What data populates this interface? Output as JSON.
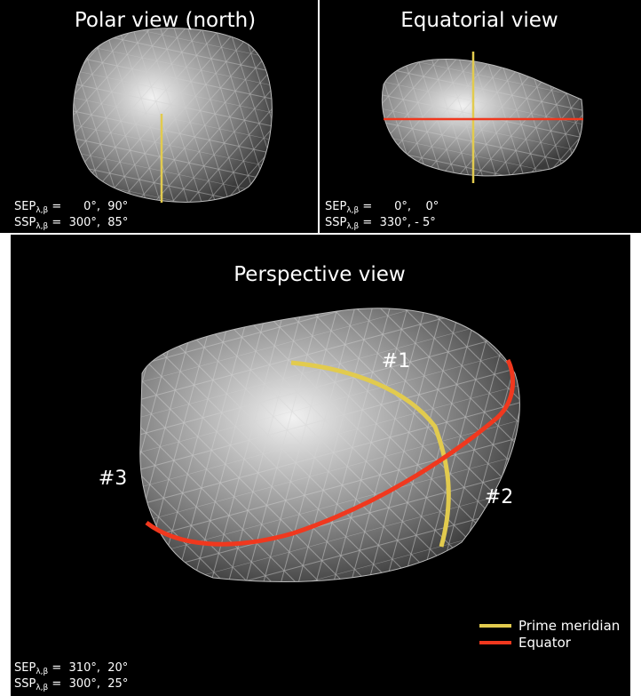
{
  "panels": [
    {
      "title": "Polar view (north)",
      "sep": {
        "label": "SEP",
        "sub": "λ,β",
        "value": " =      0°,  90°"
      },
      "ssp": {
        "label": "SSP",
        "sub": "λ,β",
        "value": " =  300°,  85°"
      }
    },
    {
      "title": "Equatorial view",
      "sep": {
        "label": "SEP",
        "sub": "λ,β",
        "value": " =      0°,    0°"
      },
      "ssp": {
        "label": "SSP",
        "sub": "λ,β",
        "value": " =  330°, - 5°"
      }
    },
    {
      "title": "Perspective view",
      "sep": {
        "label": "SEP",
        "sub": "λ,β",
        "value": " =  310°,  20°"
      },
      "ssp": {
        "label": "SSP",
        "sub": "λ,β",
        "value": " =  300°,  25°"
      }
    }
  ],
  "region_labels": [
    "#1",
    "#2",
    "#3"
  ],
  "legend": [
    {
      "name": "Prime meridian",
      "color": "#e2cb4e"
    },
    {
      "name": "Equator",
      "color": "#f0381e"
    }
  ]
}
